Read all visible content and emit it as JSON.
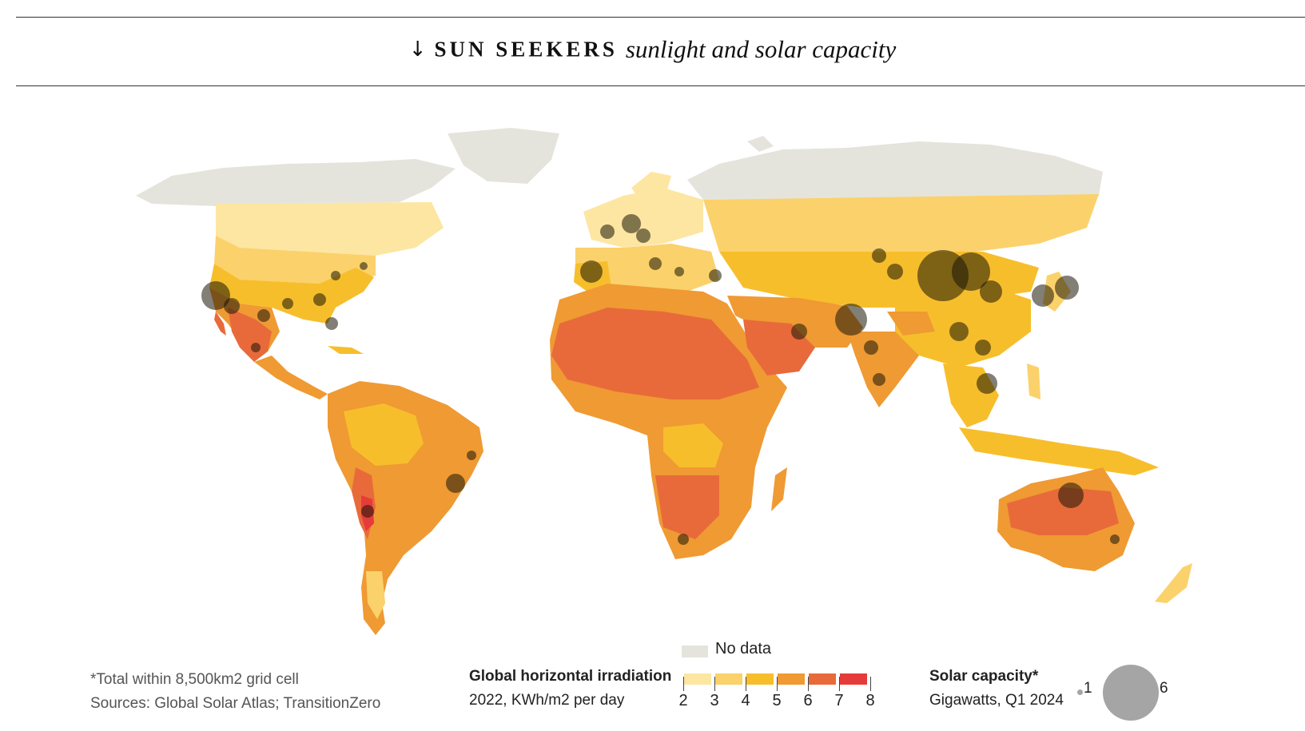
{
  "header": {
    "arrow": "↓",
    "kicker": "SUN SEEKERS",
    "subtitle": "sunlight and solar capacity"
  },
  "legend": {
    "no_data": {
      "label": "No data",
      "color": "#e5e4dc"
    },
    "irradiation": {
      "title": "Global horizontal irradiation",
      "unit": "2022, KWh/m2 per day",
      "ticks": [
        "2",
        "3",
        "4",
        "5",
        "6",
        "7",
        "8"
      ],
      "colors": [
        "#fde6a2",
        "#fbd16b",
        "#f7be2c",
        "#ef9a33",
        "#e86a3a",
        "#e63b3b"
      ]
    },
    "capacity": {
      "title": "Solar capacity*",
      "unit": "Gigawatts, Q1 2024",
      "min_label": "1",
      "max_label": "6",
      "color": "#a5a5a5"
    }
  },
  "footnote": {
    "note": "*Total within 8,500km2 grid cell",
    "sources": "Sources: Global Solar Atlas; TransitionZero"
  },
  "map": {
    "colors": {
      "no_data": "#e5e4dc",
      "c1": "#fde6a2",
      "c2": "#fbd16b",
      "c3": "#f7be2c",
      "c4": "#ef9a33",
      "c5": "#e86a3a",
      "c6": "#e63b3b",
      "capacity_dot": "#1a1505"
    }
  }
}
